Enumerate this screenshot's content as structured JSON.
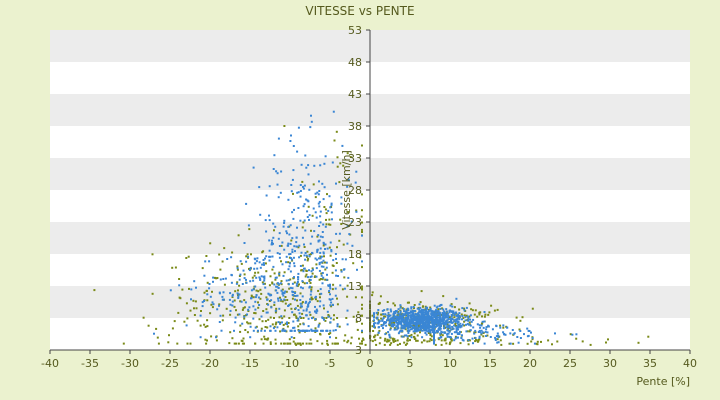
{
  "chart_data": {
    "type": "scatter",
    "title": "VITESSE vs PENTE",
    "xlabel": "Pente [%]",
    "ylabel": "Vitesse [km/h]",
    "xlim": [
      -40,
      40
    ],
    "ylim": [
      3,
      53
    ],
    "xticks": [
      -40,
      -35,
      -30,
      -25,
      -20,
      -15,
      -10,
      -5,
      0,
      5,
      10,
      15,
      20,
      25,
      30,
      35,
      40
    ],
    "yticks": [
      3,
      8,
      13,
      18,
      23,
      28,
      33,
      38,
      43,
      48,
      53
    ],
    "grid": "horizontal alternating bands",
    "legend": "none",
    "colors": {
      "series_a": "#3a86d4",
      "series_b": "#7a8a18",
      "axis": "#444444",
      "band": "#ececec",
      "plot_bg": "#ffffff"
    },
    "series": [
      {
        "color": "#3a86d4",
        "clusters": [
          {
            "count": 900,
            "x_mean": 6.5,
            "x_sd": 2.6,
            "y_mean": 7.6,
            "y_sd": 1.0,
            "x_range": [
              0.5,
              15
            ],
            "y_range": [
              5,
              11
            ]
          },
          {
            "count": 140,
            "x_mean": 12,
            "x_sd": 6,
            "y_mean": 5.6,
            "y_sd": 0.9,
            "x_range": [
              8,
              40
            ],
            "y_range": [
              4,
              8
            ]
          },
          {
            "count": 420,
            "x_mean": -8,
            "x_sd": 3.2,
            "y_mean": 17,
            "y_sd": 9,
            "x_range": [
              -17,
              -1
            ],
            "y_range": [
              6,
              43.5
            ]
          },
          {
            "count": 180,
            "x_mean": -14,
            "x_sd": 4.5,
            "y_mean": 12,
            "y_sd": 3.5,
            "x_range": [
              -27,
              -5
            ],
            "y_range": [
              5,
              22
            ]
          }
        ]
      },
      {
        "color": "#7a8a18",
        "clusters": [
          {
            "count": 320,
            "x_mean": 6,
            "x_sd": 5,
            "y_mean": 7.6,
            "y_sd": 1.6,
            "x_range": [
              0,
              22
            ],
            "y_range": [
              4.5,
              13
            ]
          },
          {
            "count": 120,
            "x_mean": 8,
            "x_sd": 11,
            "y_mean": 4.5,
            "y_sd": 0.5,
            "x_range": [
              -40,
              42
            ],
            "y_range": [
              3.8,
              5.5
            ]
          },
          {
            "count": 380,
            "x_mean": -12,
            "x_sd": 7,
            "y_mean": 10,
            "y_sd": 5,
            "x_range": [
              -36,
              -1
            ],
            "y_range": [
              4,
              28
            ]
          },
          {
            "count": 80,
            "x_mean": -6,
            "x_sd": 3,
            "y_mean": 20,
            "y_sd": 8,
            "x_range": [
              -12,
              -1
            ],
            "y_range": [
              8,
              38
            ]
          }
        ]
      }
    ]
  }
}
